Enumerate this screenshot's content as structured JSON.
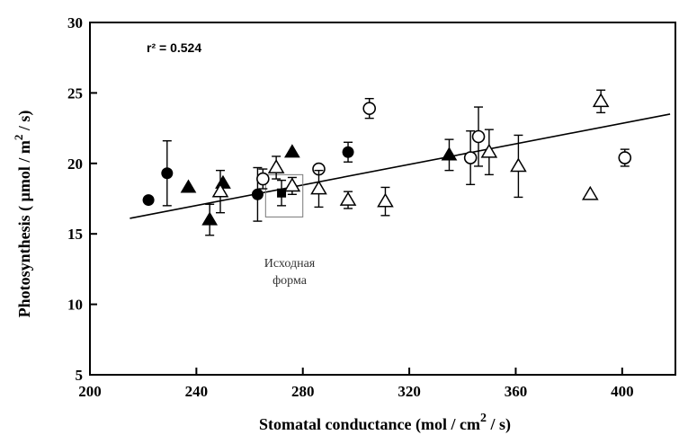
{
  "chart_data": {
    "type": "scatter",
    "xlabel_main": "Stomatal conductance  (mol / cm",
    "xlabel_sup": "2",
    "xlabel_end": " / s)",
    "ylabel_main": "Photosynthesis ( μmol / m",
    "ylabel_sup": "2",
    "ylabel_end": " / s)",
    "xlim": [
      200,
      420
    ],
    "ylim": [
      5,
      30
    ],
    "xticks": [
      200,
      240,
      280,
      320,
      360,
      400
    ],
    "yticks": [
      5,
      10,
      15,
      20,
      25,
      30
    ],
    "grid": false,
    "annotation": "r² = 0.524",
    "caption_line1": "Исходная",
    "caption_line2": "форма",
    "highlight_box": {
      "x": [
        266,
        280
      ],
      "y": [
        16.2,
        19.2
      ]
    },
    "trendline": {
      "x": [
        215,
        418
      ],
      "y": [
        16.1,
        23.5
      ]
    },
    "series": [
      {
        "marker": "filled-circle",
        "points": [
          {
            "x": 222,
            "y": 17.4
          },
          {
            "x": 229,
            "y": 19.3,
            "err": 2.3
          },
          {
            "x": 263,
            "y": 17.8,
            "err": 1.9
          },
          {
            "x": 297,
            "y": 20.8,
            "err": 0.7
          }
        ]
      },
      {
        "marker": "open-circle",
        "points": [
          {
            "x": 265,
            "y": 18.9,
            "err": 0.7
          },
          {
            "x": 286,
            "y": 19.6
          },
          {
            "x": 305,
            "y": 23.9,
            "err": 0.7
          },
          {
            "x": 343,
            "y": 20.4,
            "err": 1.9
          },
          {
            "x": 346,
            "y": 21.9,
            "err": 2.1
          },
          {
            "x": 401,
            "y": 20.4,
            "err": 0.6
          }
        ]
      },
      {
        "marker": "filled-triangle",
        "points": [
          {
            "x": 237,
            "y": 18.3
          },
          {
            "x": 245,
            "y": 16.0,
            "err": 1.1
          },
          {
            "x": 250,
            "y": 18.6
          },
          {
            "x": 276,
            "y": 20.8
          },
          {
            "x": 335,
            "y": 20.6,
            "err": 1.1
          }
        ]
      },
      {
        "marker": "open-triangle",
        "points": [
          {
            "x": 249,
            "y": 18.0,
            "err": 1.5
          },
          {
            "x": 270,
            "y": 19.7,
            "err": 0.8
          },
          {
            "x": 276,
            "y": 18.4,
            "err": 0.6
          },
          {
            "x": 286,
            "y": 18.2,
            "err": 1.3
          },
          {
            "x": 297,
            "y": 17.4,
            "err": 0.6
          },
          {
            "x": 311,
            "y": 17.3,
            "err": 1.0
          },
          {
            "x": 350,
            "y": 20.8,
            "err": 1.6
          },
          {
            "x": 361,
            "y": 19.8,
            "err": 2.2
          },
          {
            "x": 388,
            "y": 17.8
          },
          {
            "x": 392,
            "y": 24.4,
            "err": 0.8
          }
        ]
      },
      {
        "marker": "filled-square",
        "points": [
          {
            "x": 272,
            "y": 17.9,
            "err": 0.9
          }
        ]
      }
    ]
  }
}
